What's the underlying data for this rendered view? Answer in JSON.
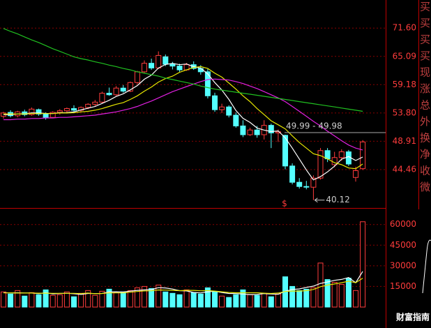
{
  "chart_data": {
    "type": "candlestick",
    "log_scale": true,
    "grid": true,
    "up_color": "#ff3c3c",
    "down_color": "#54ffff",
    "ylim": [
      39.07,
      78.7
    ],
    "yticks": [
      {
        "value": 71.6,
        "label": "71.60"
      },
      65.09,
      59.18,
      {
        "value": 53.8,
        "label": "53.80"
      },
      48.91,
      44.46
    ],
    "open": [
      53.2,
      53.9,
      53.3,
      54.0,
      53.5,
      54.4,
      53.6,
      53.0,
      53.9,
      54.2,
      54.6,
      54.3,
      54.8,
      55.4,
      55.8,
      57.5,
      57.2,
      58.5,
      57.9,
      59.6,
      61.8,
      63.6,
      62.6,
      65.0,
      63.4,
      63.0,
      62.2,
      63.3,
      62.5,
      61.8,
      57.0,
      54.4,
      54.9,
      53.4,
      51.5,
      50.0,
      50.8,
      50.0,
      51.6,
      50.3,
      49.9,
      45.0,
      42.6,
      42.0,
      41.9,
      43.2,
      47.4,
      45.2,
      46.3,
      47.2,
      43.3,
      44.6
    ],
    "high": [
      54.0,
      54.3,
      54.2,
      54.4,
      54.8,
      54.6,
      53.9,
      54.1,
      54.5,
      54.8,
      55.2,
      55.0,
      55.6,
      56.2,
      57.8,
      58.6,
      58.9,
      59.1,
      59.8,
      62.0,
      64.2,
      64.6,
      66.2,
      65.5,
      63.9,
      63.5,
      63.7,
      64.0,
      63.2,
      62.4,
      57.6,
      55.5,
      55.2,
      53.9,
      52.5,
      51.2,
      51.5,
      52.5,
      51.9,
      50.9,
      50.0,
      45.4,
      43.2,
      42.8,
      43.6,
      47.8,
      47.8,
      47.2,
      47.6,
      47.5,
      44.9,
      49.1
    ],
    "low": [
      52.8,
      53.0,
      53.0,
      53.2,
      53.3,
      53.3,
      52.6,
      52.9,
      53.5,
      53.7,
      54.0,
      54.0,
      54.5,
      55.0,
      55.6,
      57.0,
      57.0,
      57.6,
      57.7,
      59.3,
      61.5,
      62.2,
      62.4,
      63.0,
      62.3,
      61.8,
      62.0,
      62.2,
      61.2,
      56.5,
      54.0,
      53.8,
      53.0,
      51.2,
      49.6,
      49.8,
      49.5,
      49.2,
      47.8,
      48.8,
      44.5,
      42.3,
      41.7,
      41.6,
      40.12,
      43.0,
      45.6,
      44.8,
      45.8,
      45.0,
      42.7,
      44.4
    ],
    "close": [
      53.8,
      53.3,
      54.0,
      53.5,
      54.5,
      53.6,
      53.0,
      53.9,
      54.2,
      54.6,
      54.3,
      54.8,
      55.4,
      55.8,
      57.5,
      57.2,
      58.5,
      57.9,
      59.6,
      61.8,
      63.6,
      62.6,
      65.3,
      63.4,
      63.0,
      62.2,
      63.3,
      62.5,
      61.8,
      57.0,
      54.4,
      54.9,
      53.4,
      51.5,
      50.0,
      50.8,
      50.0,
      51.6,
      50.3,
      50.5,
      45.0,
      42.6,
      42.0,
      41.9,
      43.2,
      47.4,
      46.1,
      46.3,
      47.2,
      45.3,
      44.3,
      48.8
    ],
    "series": [
      {
        "color": "#ffffff",
        "values": [
          53.5,
          53.5,
          53.6,
          53.6,
          53.82,
          53.78,
          53.72,
          53.7,
          53.84,
          53.86,
          54.0,
          54.36,
          54.66,
          54.98,
          55.56,
          56.14,
          56.88,
          57.38,
          58.14,
          59.0,
          60.28,
          61.1,
          62.58,
          63.34,
          63.58,
          63.3,
          63.44,
          62.88,
          62.56,
          61.36,
          59.6,
          58.12,
          56.3,
          54.24,
          52.84,
          52.12,
          51.14,
          50.78,
          50.54,
          50.64,
          49.48,
          47.8,
          46.08,
          44.4,
          42.94,
          43.42,
          44.12,
          44.98,
          46.04,
          46.46,
          45.84,
          46.38
        ]
      },
      {
        "color": "#e6e600",
        "values": [
          53.6,
          53.6,
          53.6,
          53.6,
          53.7,
          53.7,
          53.7,
          53.7,
          53.8,
          53.8,
          53.85,
          54.0,
          54.1,
          54.3,
          54.6,
          55.0,
          55.4,
          55.7,
          56.3,
          57.0,
          57.9,
          58.7,
          59.7,
          60.4,
          60.9,
          61.7,
          62.2,
          62.7,
          62.9,
          62.5,
          61.5,
          60.7,
          59.5,
          58.3,
          57.0,
          55.9,
          54.6,
          53.5,
          52.4,
          51.7,
          51.0,
          49.8,
          48.7,
          47.8,
          46.9,
          46.6,
          46.1,
          45.5,
          45.2,
          44.7,
          44.6,
          45.3
        ]
      },
      {
        "color": "#e020e0",
        "values": [
          52.6,
          52.6,
          52.7,
          52.7,
          52.8,
          52.8,
          52.9,
          52.9,
          53.0,
          53.0,
          53.1,
          53.2,
          53.3,
          53.4,
          53.6,
          53.8,
          54.0,
          54.3,
          54.6,
          55.0,
          55.5,
          56.0,
          56.6,
          57.2,
          57.8,
          58.3,
          58.8,
          59.3,
          59.8,
          60.2,
          60.3,
          60.2,
          60.1,
          59.8,
          59.4,
          58.9,
          58.4,
          57.8,
          57.2,
          56.6,
          55.9,
          55.0,
          54.1,
          53.2,
          52.3,
          51.5,
          50.6,
          49.8,
          49.0,
          48.3,
          47.8,
          47.5
        ]
      },
      {
        "color": "#20c020",
        "values": [
          71.5,
          70.8,
          70.2,
          69.5,
          68.8,
          68.2,
          67.5,
          66.8,
          66.2,
          65.6,
          65.0,
          64.6,
          64.3,
          63.9,
          63.6,
          63.2,
          62.9,
          62.5,
          62.2,
          61.8,
          61.5,
          61.2,
          60.9,
          60.5,
          60.2,
          59.9,
          59.6,
          59.3,
          58.9,
          58.6,
          58.3,
          58.1,
          57.9,
          57.7,
          57.5,
          57.3,
          57.1,
          56.9,
          56.7,
          56.5,
          56.3,
          56.1,
          55.9,
          55.7,
          55.5,
          55.3,
          55.1,
          54.9,
          54.7,
          54.5,
          54.3,
          54.1
        ]
      }
    ],
    "annotations": [
      "49.99 - 49.98",
      "40.12"
    ],
    "marker": "$",
    "volume": {
      "ylim": [
        0,
        71000
      ],
      "yticks": [
        15000,
        30000,
        45000,
        60000
      ],
      "values": [
        11000,
        9500,
        12000,
        8000,
        10500,
        9000,
        12500,
        8500,
        9000,
        11000,
        7500,
        10000,
        12000,
        8500,
        11500,
        13000,
        10500,
        11000,
        12000,
        14000,
        15000,
        13500,
        16000,
        11000,
        10000,
        9000,
        12500,
        10500,
        9500,
        14000,
        11000,
        8000,
        7000,
        9000,
        12500,
        9000,
        8500,
        10000,
        7500,
        9500,
        22000,
        15000,
        12000,
        13000,
        14000,
        32000,
        20000,
        18000,
        16500,
        21000,
        12000,
        62000
      ],
      "series": [
        {
          "color": "#ffffff",
          "values": [
            10500,
            10300,
            10400,
            10200,
            10200,
            9800,
            10400,
            9600,
            9900,
            10000,
            9700,
            9200,
            9900,
            9800,
            9900,
            11000,
            11100,
            10900,
            11600,
            12100,
            12500,
            12700,
            14100,
            13900,
            13100,
            11900,
            11700,
            10600,
            10300,
            11100,
            11500,
            10600,
            9900,
            9800,
            9500,
            9100,
            9200,
            9800,
            9500,
            9300,
            11500,
            12800,
            13200,
            14300,
            15200,
            17200,
            18200,
            19400,
            20100,
            21500,
            17700,
            25900
          ]
        },
        {
          "color": "#e6e600",
          "values": [
            10300,
            10300,
            10200,
            10200,
            10200,
            10100,
            10100,
            10000,
            10000,
            10000,
            10000,
            9800,
            10200,
            9700,
            9900,
            10300,
            10300,
            10300,
            10800,
            11300,
            11700,
            11800,
            12400,
            12300,
            12100,
            11900,
            12100,
            12100,
            11800,
            12000,
            11600,
            11100,
            10600,
            10400,
            10400,
            10400,
            10400,
            10100,
            9900,
            10200,
            11300,
            11600,
            11600,
            11900,
            12800,
            14800,
            16000,
            16800,
            17700,
            18800,
            17700,
            21000
          ]
        }
      ]
    },
    "side_labels": [
      "买",
      "买",
      "买",
      "买",
      "现",
      "涨",
      "总",
      "外",
      "换",
      "净",
      "收",
      "微"
    ],
    "watermark": "财富指南"
  }
}
